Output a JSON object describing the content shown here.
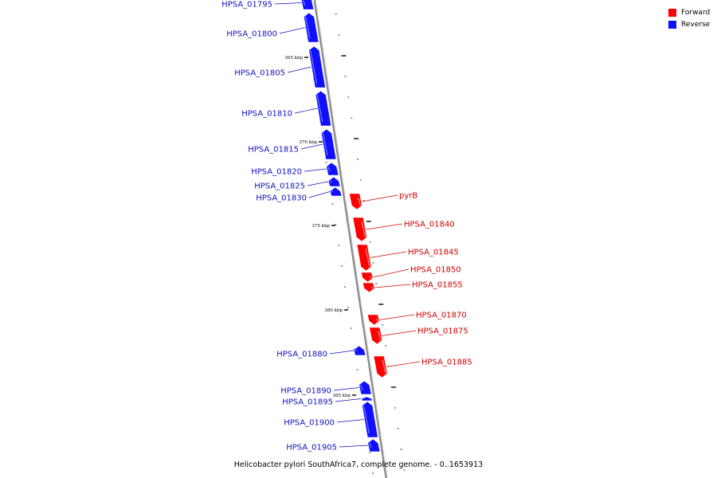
{
  "legend": {
    "forward_label": "Forward",
    "reverse_label": "Reverse",
    "forward_color": "#ff0000",
    "reverse_color": "#1010ff"
  },
  "caption": "Helicobacter pylori SouthAfrica7, complete genome. - 0..1653913",
  "scale_labels": [
    "365 kbp",
    "370 kbp",
    "375 kbp",
    "380 kbp",
    "385 kbp"
  ],
  "genes": [
    {
      "label": "HPSA_01795",
      "strand": "reverse"
    },
    {
      "label": "HPSA_01800",
      "strand": "reverse"
    },
    {
      "label": "HPSA_01805",
      "strand": "reverse"
    },
    {
      "label": "HPSA_01810",
      "strand": "reverse"
    },
    {
      "label": "HPSA_01815",
      "strand": "reverse"
    },
    {
      "label": "HPSA_01820",
      "strand": "reverse"
    },
    {
      "label": "HPSA_01825",
      "strand": "reverse"
    },
    {
      "label": "HPSA_01830",
      "strand": "reverse"
    },
    {
      "label": "pyrB",
      "strand": "forward"
    },
    {
      "label": "HPSA_01840",
      "strand": "forward"
    },
    {
      "label": "HPSA_01845",
      "strand": "forward"
    },
    {
      "label": "HPSA_01850",
      "strand": "forward"
    },
    {
      "label": "HPSA_01855",
      "strand": "forward"
    },
    {
      "label": "HPSA_01870",
      "strand": "forward"
    },
    {
      "label": "HPSA_01875",
      "strand": "forward"
    },
    {
      "label": "HPSA_01885",
      "strand": "forward"
    },
    {
      "label": "HPSA_01880",
      "strand": "reverse"
    },
    {
      "label": "HPSA_01890",
      "strand": "reverse"
    },
    {
      "label": "HPSA_01895",
      "strand": "reverse"
    },
    {
      "label": "HPSA_01900",
      "strand": "reverse"
    },
    {
      "label": "HPSA_01905",
      "strand": "reverse"
    }
  ]
}
